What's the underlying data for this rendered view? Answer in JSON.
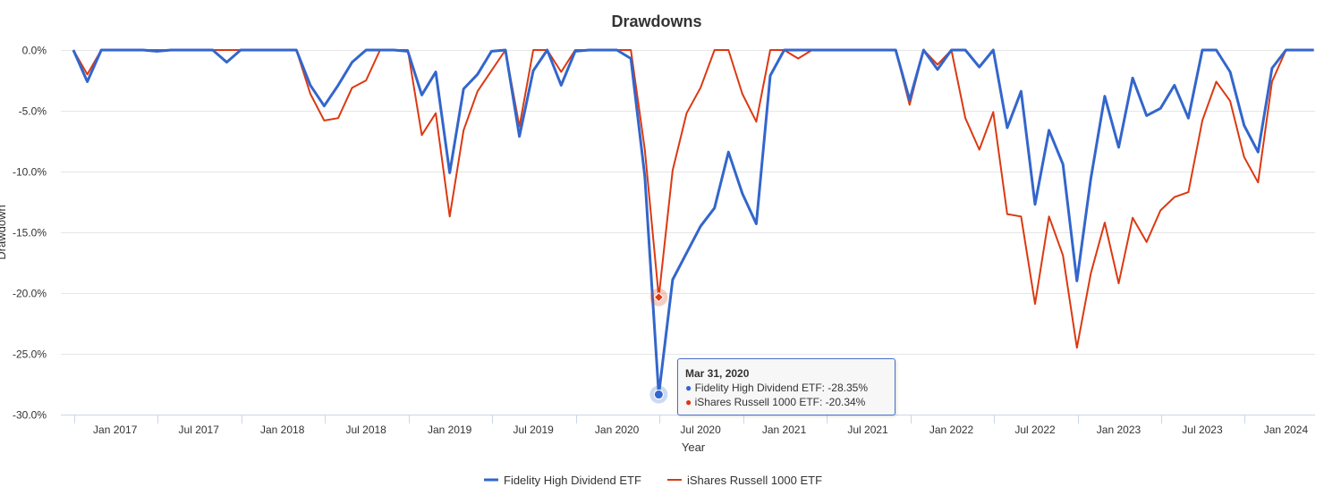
{
  "chart_data": {
    "type": "line",
    "title": "Drawdowns",
    "xlabel": "Year",
    "ylabel": "Drawdown",
    "ylim": [
      -30,
      0
    ],
    "yticks": [
      "0.0%",
      "-5.0%",
      "-10.0%",
      "-15.0%",
      "-20.0%",
      "-25.0%",
      "-30.0%"
    ],
    "ytick_values": [
      0,
      -5,
      -10,
      -15,
      -20,
      -25,
      -30
    ],
    "xticks": [
      "Jan 2017",
      "Jul 2017",
      "Jan 2018",
      "Jul 2018",
      "Jan 2019",
      "Jul 2019",
      "Jan 2020",
      "Jul 2020",
      "Jan 2021",
      "Jul 2021",
      "Jan 2022",
      "Jul 2022",
      "Jan 2023",
      "Jul 2023",
      "Jan 2024"
    ],
    "grid": true,
    "legend_position": "bottom-center",
    "x_start_month": "2016-09",
    "x_frequency": "month-end",
    "series": [
      {
        "name": "Fidelity High Dividend ETF",
        "color": "#3366cc",
        "values": [
          0,
          -2.6,
          0,
          0,
          0,
          0,
          -0.1,
          0,
          0,
          0,
          0,
          -1.0,
          0,
          0,
          0,
          0,
          0,
          -2.9,
          -4.6,
          -2.9,
          -1.0,
          0,
          0,
          0,
          -0.1,
          -3.7,
          -1.8,
          -10.1,
          -3.2,
          -2.0,
          -0.1,
          0,
          -7.1,
          -1.7,
          0,
          -2.9,
          -0.1,
          0,
          0,
          0,
          -0.7,
          -10.4,
          -28.35,
          -18.9,
          -16.7,
          -14.5,
          -13.0,
          -8.4,
          -11.8,
          -14.3,
          -2.1,
          0,
          0,
          0,
          0,
          0,
          0,
          0,
          0,
          0,
          -4.1,
          0,
          -1.6,
          0,
          0,
          -1.4,
          0,
          -6.4,
          -3.4,
          -12.7,
          -6.6,
          -9.4,
          -19.0,
          -10.6,
          -3.8,
          -8.0,
          -2.3,
          -5.4,
          -4.8,
          -2.9,
          -5.6,
          0,
          0,
          -1.8,
          -6.2,
          -8.4,
          -1.5,
          0,
          0,
          0
        ]
      },
      {
        "name": "iShares Russell 1000 ETF",
        "color": "#dc3912",
        "values": [
          0,
          -2.0,
          0,
          0,
          0,
          0,
          0,
          0,
          0,
          0,
          0,
          0,
          0,
          0,
          0,
          0,
          0,
          -3.6,
          -5.8,
          -5.6,
          -3.1,
          -2.5,
          0,
          0,
          0,
          -7.0,
          -5.2,
          -13.7,
          -6.6,
          -3.4,
          -1.7,
          0,
          -6.3,
          0,
          0,
          -1.8,
          0,
          0,
          0,
          0,
          0,
          -8.2,
          -20.34,
          -9.9,
          -5.2,
          -3.1,
          0,
          0,
          -3.6,
          -5.9,
          0,
          0,
          -0.7,
          0,
          0,
          0,
          0,
          0,
          0,
          0,
          -4.5,
          0,
          -1.2,
          0,
          -5.6,
          -8.2,
          -5.1,
          -13.5,
          -13.7,
          -20.9,
          -13.7,
          -16.9,
          -24.5,
          -18.4,
          -14.2,
          -19.2,
          -13.8,
          -15.8,
          -13.2,
          -12.1,
          -11.7,
          -5.8,
          -2.6,
          -4.2,
          -8.8,
          -10.9,
          -2.6,
          0,
          0,
          0
        ]
      }
    ],
    "highlight_index": 42
  },
  "tooltip": {
    "date": "Mar 31, 2020",
    "line1": "Fidelity High Dividend ETF: -28.35%",
    "line2": "iShares Russell 1000 ETF: -20.34%"
  }
}
